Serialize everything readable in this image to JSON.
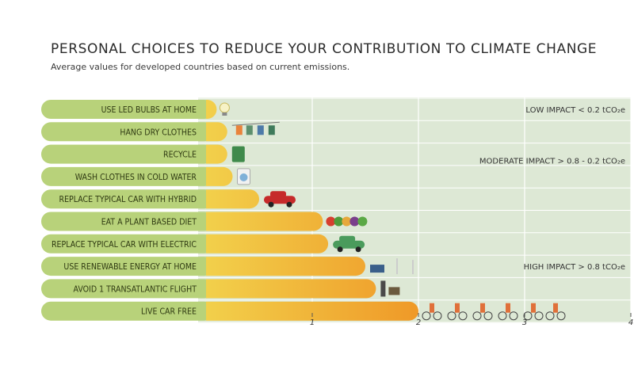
{
  "title": "PERSONAL CHOICES TO REDUCE YOUR CONTRIBUTION TO CLIMATE CHANGE",
  "subtitle": "Average values for developed countries based on current emissions.",
  "colors": {
    "label_bar": "#b8d27a",
    "bar_start": "#f2d04b",
    "bar_end": "#ee8a1e",
    "zone_fill": "#dde8d5",
    "background": "#ffffff"
  },
  "chart_data": {
    "type": "bar",
    "orientation": "horizontal",
    "unit": "tCO2e",
    "categories": [
      "USE LED BULBS AT HOME",
      "HANG DRY CLOTHES",
      "RECYCLE",
      "WASH CLOTHES IN COLD WATER",
      "REPLACE TYPICAL CAR WITH HYBRID",
      "EAT A PLANT BASED DIET",
      "REPLACE TYPICAL CAR WITH ELECTRIC",
      "USE RENEWABLE ENERGY AT HOME",
      "AVOID 1 TRANSATLANTIC FLIGHT",
      "LIVE CAR FREE"
    ],
    "values": [
      0.1,
      0.2,
      0.2,
      0.25,
      0.5,
      1.1,
      1.15,
      1.5,
      1.6,
      2.0
    ],
    "icons": [
      "light-bulb-icon",
      "clothesline-icon",
      "recycle-bin-icon",
      "washing-machine-icon",
      "car-icon",
      "vegetables-icon",
      "electric-car-icon",
      "solar-wind-icon",
      "airplane-icon",
      "cyclists-icon"
    ],
    "xlim": [
      0,
      4
    ],
    "x_ticks": [
      "1",
      "2",
      "3",
      "4"
    ],
    "x_tick_values": [
      1,
      2,
      3,
      4
    ],
    "zones": [
      {
        "label": "LOW IMPACT < 0.2 tCO₂e",
        "rows": [
          0,
          0
        ]
      },
      {
        "label": "MODERATE IMPACT  > 0.8 - 0.2 tCO₂e",
        "rows": [
          1,
          4
        ]
      },
      {
        "label": "HIGH IMPACT  > 0.8 tCO₂e",
        "rows": [
          5,
          9
        ]
      }
    ],
    "grid": true
  }
}
